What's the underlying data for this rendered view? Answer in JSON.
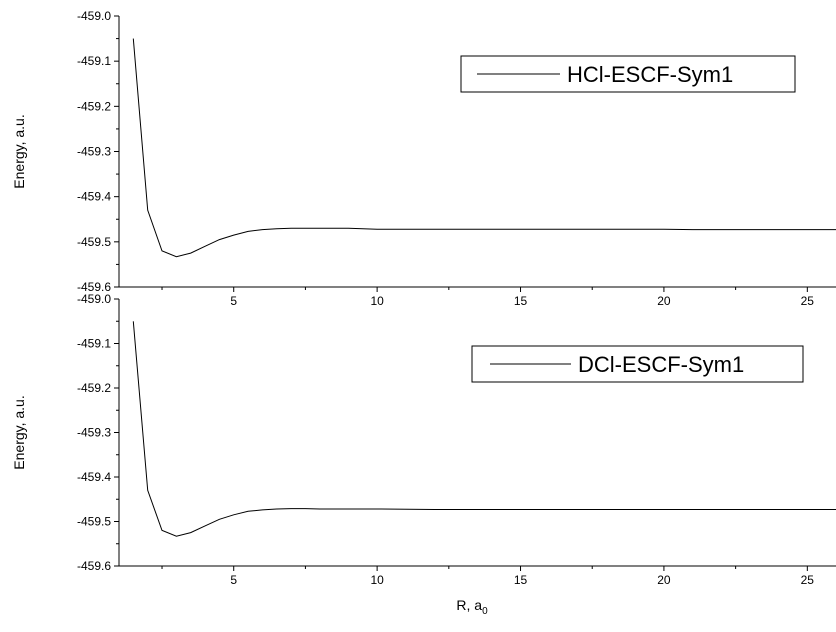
{
  "chart_data": [
    {
      "type": "line",
      "title": "",
      "xlabel": "",
      "ylabel": "Energy, a.u.",
      "xlim": [
        1,
        26
      ],
      "ylim": [
        -459.6,
        -459.0
      ],
      "xticks": [
        5,
        10,
        15,
        20,
        25
      ],
      "xtick_labels": [
        "5",
        "10",
        "15",
        "20",
        "25"
      ],
      "yticks": [
        -459.0,
        -459.1,
        -459.2,
        -459.3,
        -459.4,
        -459.5,
        -459.6
      ],
      "ytick_labels": [
        "-459.0",
        "-459.1",
        "-459.2",
        "-459.3",
        "-459.4",
        "-459.5",
        "-459.6"
      ],
      "grid": false,
      "legend_position": "top-right",
      "series": [
        {
          "name": "HCl-ESCF-Sym1",
          "color": "#000000",
          "x": [
            1.5,
            2.0,
            2.5,
            3.0,
            3.5,
            4.0,
            4.5,
            5.0,
            5.5,
            6.0,
            6.5,
            7.0,
            8.0,
            9.0,
            10.0,
            12.0,
            15.0,
            20.0,
            21.0,
            26.0
          ],
          "y": [
            -459.05,
            -459.43,
            -459.52,
            -459.533,
            -459.525,
            -459.51,
            -459.495,
            -459.485,
            -459.477,
            -459.473,
            -459.471,
            -459.47,
            -459.47,
            -459.47,
            -459.472,
            -459.472,
            -459.472,
            -459.472,
            -459.473,
            -459.473
          ]
        }
      ]
    },
    {
      "type": "line",
      "title": "",
      "xlabel": "R, a0",
      "ylabel": "Energy, a.u.",
      "xlim": [
        1,
        26
      ],
      "ylim": [
        -459.6,
        -459.0
      ],
      "xticks": [
        5,
        10,
        15,
        20,
        25
      ],
      "xtick_labels": [
        "5",
        "10",
        "15",
        "20",
        "25"
      ],
      "yticks": [
        -459.0,
        -459.1,
        -459.2,
        -459.3,
        -459.4,
        -459.5,
        -459.6
      ],
      "ytick_labels": [
        "-459.0",
        "-459.1",
        "-459.2",
        "-459.3",
        "-459.4",
        "-459.5",
        "-459.6"
      ],
      "grid": false,
      "legend_position": "top-right",
      "series": [
        {
          "name": "DCl-ESCF-Sym1",
          "color": "#000000",
          "x": [
            1.5,
            2.0,
            2.5,
            3.0,
            3.5,
            4.0,
            4.5,
            5.0,
            5.5,
            6.0,
            6.5,
            7.0,
            7.5,
            8.0,
            9.0,
            10.0,
            12.0,
            15.0,
            20.0,
            26.0
          ],
          "y": [
            -459.05,
            -459.43,
            -459.52,
            -459.533,
            -459.525,
            -459.51,
            -459.495,
            -459.485,
            -459.477,
            -459.474,
            -459.472,
            -459.471,
            -459.471,
            -459.472,
            -459.472,
            -459.472,
            -459.473,
            -459.473,
            -459.473,
            -459.473
          ]
        }
      ]
    }
  ],
  "xlabel_main": "R, a",
  "xlabel_sub": "0"
}
